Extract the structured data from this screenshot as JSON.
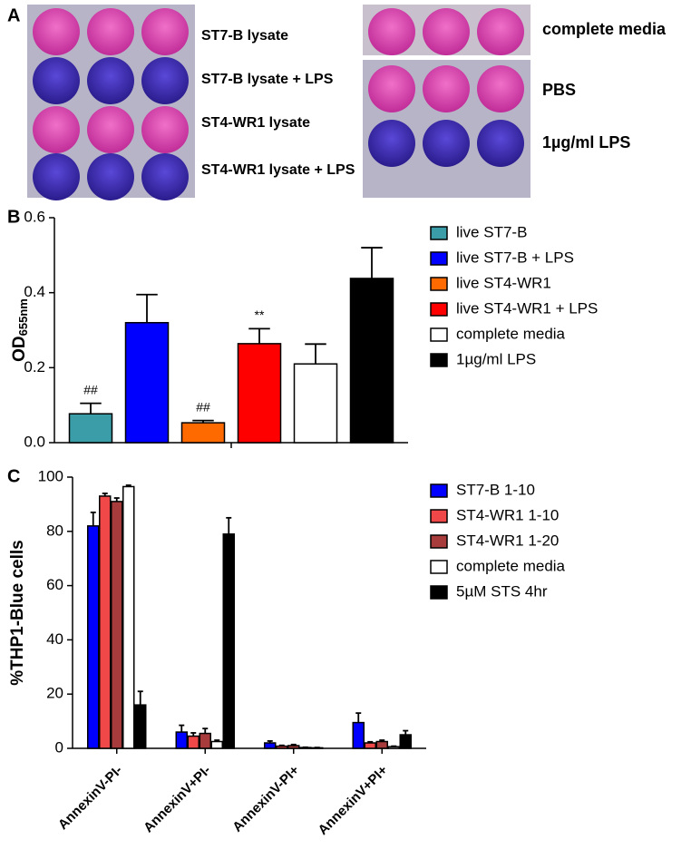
{
  "panel_a": {
    "panel_label": "A",
    "left_labels": [
      "ST7-B lysate",
      "ST7-B lysate + LPS",
      "ST4-WR1 lysate",
      "ST4-WR1 lysate + LPS"
    ],
    "right_labels": [
      "complete media",
      "PBS",
      "1µg/ml LPS"
    ]
  },
  "chart_data": [
    {
      "type": "bar",
      "panel_label": "B",
      "y_label": "OD",
      "y_label_subscript": "655nm",
      "categories": [
        null
      ],
      "ylim": [
        0,
        0.6
      ],
      "yticks": [
        {
          "value": 0,
          "label": "0.0"
        },
        0.2,
        0.4,
        0.6
      ],
      "grid": false,
      "legend": "right",
      "series": [
        {
          "name": "live ST7-B",
          "color": "#3a9da8",
          "values": [
            0.077
          ],
          "errors": [
            0.028
          ],
          "annotation": "##"
        },
        {
          "name": "live ST7-B + LPS",
          "color": "#0000ff",
          "values": [
            0.32
          ],
          "errors": [
            0.075
          ]
        },
        {
          "name": "live ST4-WR1",
          "color": "#ff6a00",
          "values": [
            0.053
          ],
          "errors": [
            0.006
          ],
          "annotation": "##"
        },
        {
          "name": "live ST4-WR1 + LPS",
          "color": "#ff0000",
          "values": [
            0.264
          ],
          "errors": [
            0.04
          ],
          "annotation": "**"
        },
        {
          "name": "complete media",
          "color": "#ffffff",
          "values": [
            0.21
          ],
          "errors": [
            0.053
          ]
        },
        {
          "name": "1µg/ml LPS",
          "color": "#000000",
          "values": [
            0.438
          ],
          "errors": [
            0.082
          ]
        }
      ]
    },
    {
      "type": "bar",
      "panel_label": "C",
      "y_label": "%THP1-Blue cells",
      "categories": [
        "AnnexinV-PI-",
        "AnnexinV+PI-",
        "AnnexinV-PI+",
        "AnnexinV+PI+"
      ],
      "ylim": [
        0,
        100
      ],
      "yticks": [
        0,
        20,
        40,
        60,
        80,
        100
      ],
      "grid": false,
      "legend": "right",
      "series": [
        {
          "name": "ST7-B 1-10",
          "color": "#0000ff",
          "values": [
            82,
            6,
            2,
            9.5
          ],
          "errors": [
            5,
            2.5,
            0.7,
            3.5
          ]
        },
        {
          "name": "ST4-WR1 1-10",
          "color": "#f04848",
          "values": [
            93,
            4.5,
            0.8,
            2
          ],
          "errors": [
            1,
            1.2,
            0.3,
            0.4
          ]
        },
        {
          "name": "ST4-WR1 1-20",
          "color": "#a83c3c",
          "values": [
            91,
            5.5,
            1,
            2.5
          ],
          "errors": [
            1.3,
            1.8,
            0.4,
            0.5
          ]
        },
        {
          "name": "complete media",
          "color": "#ffffff",
          "values": [
            96.5,
            2.5,
            0.3,
            0.6
          ],
          "errors": [
            0.5,
            0.5,
            0.1,
            0.2
          ]
        },
        {
          "name": "5µM STS 4hr",
          "color": "#000000",
          "values": [
            16,
            79,
            0.2,
            5
          ],
          "errors": [
            5,
            6,
            0.1,
            1.5
          ]
        }
      ]
    }
  ]
}
